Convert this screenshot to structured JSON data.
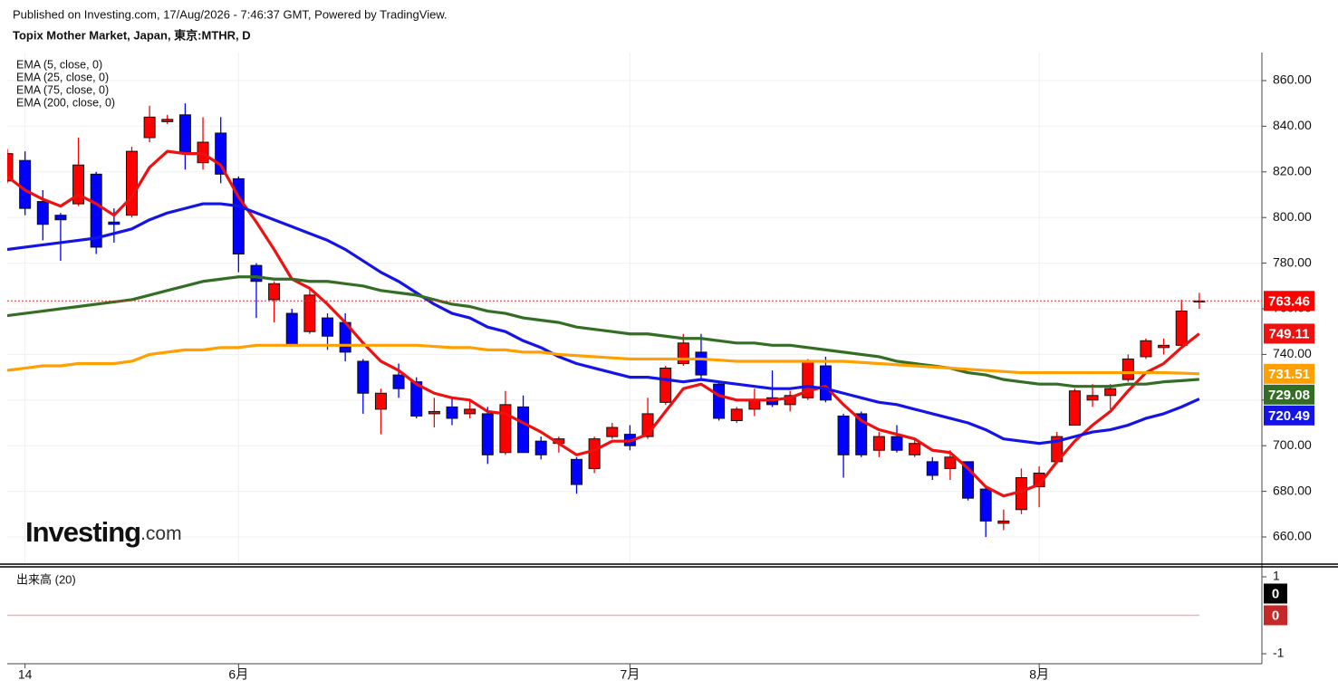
{
  "header": {
    "published": "Published on Investing.com, 17/Aug/2026 - 7:46:37 GMT, Powered by TradingView."
  },
  "logo": {
    "name": "Investing",
    "suffix": ".com"
  },
  "chart_data": [
    {
      "type": "candlestick",
      "title": "Topix Mother Market, Japan, 東京:MTHR, D",
      "categories": [
        null,
        "14",
        null,
        null,
        null,
        null,
        null,
        null,
        null,
        null,
        null,
        null,
        null,
        "6月",
        null,
        null,
        null,
        null,
        null,
        null,
        null,
        null,
        null,
        null,
        null,
        null,
        null,
        null,
        null,
        null,
        null,
        null,
        null,
        null,
        null,
        "7月",
        null,
        null,
        null,
        null,
        null,
        null,
        null,
        null,
        null,
        null,
        null,
        null,
        null,
        null,
        null,
        null,
        null,
        null,
        null,
        null,
        null,
        null,
        "8月",
        null,
        null,
        null,
        null,
        null,
        null,
        null,
        null,
        null
      ],
      "candles": {
        "up_color": "#ff0000",
        "down_color": "#0000ff",
        "open": [
          816,
          825,
          807,
          801,
          806,
          819,
          798,
          801,
          835,
          842,
          845,
          824,
          837,
          817,
          779,
          764,
          758,
          750,
          756,
          754,
          737,
          716,
          731,
          728,
          714,
          717,
          714,
          714,
          697,
          717,
          702,
          701,
          694,
          690,
          704,
          705,
          704,
          719,
          736,
          741,
          727,
          711,
          716,
          721,
          718,
          721,
          735,
          713,
          714,
          698,
          704,
          696,
          693,
          690,
          693,
          681,
          666,
          672,
          682,
          693,
          709,
          720,
          722,
          729,
          739,
          743,
          744,
          763
        ],
        "high": [
          830,
          829,
          812,
          802,
          835,
          820,
          804,
          831,
          849,
          845,
          850,
          844,
          844,
          818,
          780,
          772,
          760,
          769,
          758,
          758,
          738,
          725,
          736,
          730,
          721,
          721,
          720,
          717,
          724,
          722,
          704,
          704,
          695,
          704,
          710,
          709,
          721,
          735,
          749,
          749,
          728,
          717,
          725,
          733,
          724,
          738,
          739,
          714,
          715,
          706,
          709,
          703,
          695,
          698,
          693,
          682,
          672,
          690,
          691,
          706,
          725,
          727,
          727,
          740,
          747,
          747,
          764,
          767
        ],
        "low": [
          815,
          801,
          790,
          781,
          805,
          784,
          789,
          800,
          833,
          841,
          821,
          821,
          815,
          776,
          756,
          754,
          744,
          749,
          742,
          737,
          714,
          705,
          721,
          712,
          708,
          709,
          712,
          692,
          696,
          697,
          694,
          697,
          679,
          688,
          703,
          698,
          703,
          718,
          735,
          729,
          711,
          710,
          713,
          717,
          715,
          720,
          719,
          686,
          695,
          695,
          697,
          695,
          685,
          685,
          676,
          660,
          663,
          670,
          673,
          692,
          709,
          717,
          716,
          728,
          738,
          740,
          743,
          760
        ],
        "close": [
          828,
          804,
          797,
          799,
          823,
          787,
          797,
          829,
          844,
          843,
          828,
          833,
          819,
          784,
          772,
          771,
          744,
          766,
          748,
          741,
          723,
          723,
          725,
          713,
          715,
          712,
          716,
          696,
          718,
          697,
          696,
          703,
          683,
          703,
          708,
          700,
          714,
          734,
          745,
          731,
          712,
          716,
          720,
          718,
          722,
          737,
          720,
          696,
          696,
          704,
          698,
          701,
          687,
          695,
          677,
          667,
          667,
          686,
          688,
          704,
          724,
          722,
          725,
          738,
          746,
          744,
          759,
          763.46
        ]
      },
      "series": [
        {
          "name": "EMA (5, close, 0)",
          "color": "#ee1111",
          "values": [
            818,
            812,
            808,
            805,
            810,
            806,
            801,
            809,
            822,
            829,
            828,
            828,
            823,
            809,
            798,
            786,
            773,
            769,
            762,
            754,
            745,
            737,
            733,
            727,
            723,
            721,
            720,
            715,
            714,
            710,
            706,
            701,
            696,
            698,
            702,
            702,
            705,
            715,
            725,
            727,
            722,
            720,
            720,
            720,
            721,
            724,
            726,
            718,
            711,
            707,
            705,
            703,
            698,
            697,
            690,
            682,
            678,
            680,
            683,
            693,
            702,
            709,
            715,
            724,
            732,
            736,
            743,
            749.11
          ]
        },
        {
          "name": "EMA (25, close, 0)",
          "color": "#1414e6",
          "values": [
            786,
            787,
            788,
            789,
            790,
            791,
            793,
            795,
            799,
            802,
            804,
            806,
            806,
            805,
            802,
            799,
            796,
            793,
            790,
            786,
            781,
            776,
            772,
            767,
            762,
            758,
            756,
            752,
            750,
            746,
            743,
            739,
            736,
            734,
            732,
            730,
            730,
            729,
            728,
            729,
            728,
            727,
            726,
            725,
            725,
            726,
            725,
            723,
            721,
            719,
            718,
            716,
            714,
            712,
            710,
            707,
            703,
            702,
            701,
            702,
            704,
            706,
            707,
            709,
            712,
            714,
            717,
            720.49
          ]
        },
        {
          "name": "EMA (75, close, 0)",
          "color": "#336e24",
          "values": [
            757,
            758,
            759,
            760,
            761,
            762,
            763,
            764,
            766,
            768,
            770,
            772,
            773,
            774,
            774,
            773,
            773,
            772,
            772,
            771,
            770,
            768,
            767,
            766,
            764,
            762,
            761,
            759,
            758,
            756,
            755,
            754,
            752,
            751,
            750,
            749,
            749,
            748,
            747,
            747,
            746,
            745,
            745,
            744,
            744,
            743,
            742,
            741,
            740,
            739,
            737,
            736,
            735,
            734,
            732,
            731,
            729,
            728,
            727,
            727,
            726,
            726,
            726,
            727,
            727,
            728,
            728.5,
            729.08
          ]
        },
        {
          "name": "EMA (200, close, 0)",
          "color": "#ffa000",
          "values": [
            733,
            734,
            735,
            735,
            736,
            736,
            736,
            737,
            740,
            741,
            742,
            742,
            743,
            743,
            744,
            744,
            744,
            744,
            744,
            744,
            744,
            744,
            744,
            744,
            743.5,
            743,
            743,
            742,
            742,
            741,
            741,
            740,
            739.5,
            739,
            738.5,
            738,
            738,
            738,
            738,
            738,
            737.5,
            737,
            737,
            737,
            737,
            737,
            737,
            737,
            736.5,
            736,
            735.5,
            735,
            734.5,
            734,
            733.5,
            733,
            732.5,
            732,
            732,
            732,
            732,
            732,
            732,
            732,
            732,
            732,
            731.8,
            731.51
          ]
        }
      ],
      "ylim": [
        648.5,
        872.3
      ],
      "yticks": [
        {
          "value": 660,
          "label": "660.00"
        },
        {
          "value": 680,
          "label": "680.00"
        },
        {
          "value": 700,
          "label": "700.00"
        },
        {
          "value": 720,
          "label": "720.00"
        },
        {
          "value": 740,
          "label": "740.00"
        },
        {
          "value": 760,
          "label": "760.00"
        },
        {
          "value": 780,
          "label": "780.00"
        },
        {
          "value": 800,
          "label": "800.00"
        },
        {
          "value": 820,
          "label": "820.00"
        },
        {
          "value": 840,
          "label": "840.00"
        },
        {
          "value": 860,
          "label": "860.00"
        }
      ],
      "grid": true
    },
    {
      "type": "bar",
      "title": "出来高 (20)",
      "series": [
        {
          "color": "#000000",
          "values": [
            0,
            0,
            0,
            0,
            0,
            0,
            0,
            0,
            0,
            0,
            0,
            0,
            0,
            0,
            0,
            0,
            0,
            0,
            0,
            0,
            0,
            0,
            0,
            0,
            0,
            0,
            0,
            0,
            0,
            0,
            0,
            0,
            0,
            0,
            0,
            0,
            0,
            0,
            0,
            0,
            0,
            0,
            0,
            0,
            0,
            0,
            0,
            0,
            0,
            0,
            0,
            0,
            0,
            0,
            0,
            0,
            0,
            0,
            0,
            0,
            0,
            0,
            0,
            0,
            0,
            0,
            0,
            0
          ]
        },
        {
          "color": "#c62828",
          "values": [
            0,
            0,
            0,
            0,
            0,
            0,
            0,
            0,
            0,
            0,
            0,
            0,
            0,
            0,
            0,
            0,
            0,
            0,
            0,
            0,
            0,
            0,
            0,
            0,
            0,
            0,
            0,
            0,
            0,
            0,
            0,
            0,
            0,
            0,
            0,
            0,
            0,
            0,
            0,
            0,
            0,
            0,
            0,
            0,
            0,
            0,
            0,
            0,
            0,
            0,
            0,
            0,
            0,
            0,
            0,
            0,
            0,
            0,
            0,
            0,
            0,
            0,
            0,
            0,
            0,
            0,
            0,
            0
          ]
        }
      ],
      "ylim": [
        -1.259,
        1.235
      ],
      "yticks": [
        1,
        -1
      ]
    }
  ]
}
